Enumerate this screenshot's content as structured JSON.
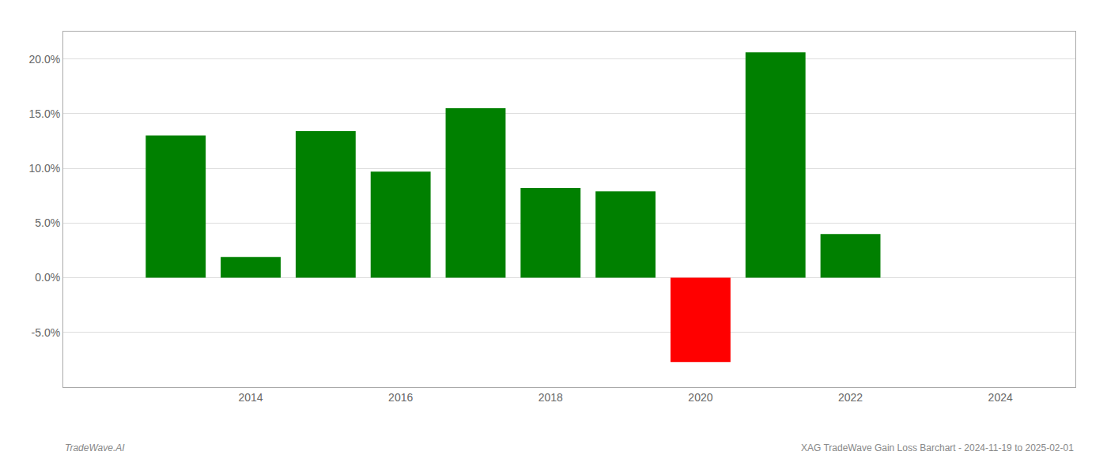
{
  "chart_data": {
    "type": "bar",
    "x": [
      2013,
      2014,
      2015,
      2016,
      2017,
      2018,
      2019,
      2020,
      2021,
      2022,
      2023
    ],
    "values": [
      0.13,
      0.019,
      0.134,
      0.097,
      0.155,
      0.082,
      0.079,
      -0.077,
      0.206,
      0.04,
      0.0
    ],
    "colors": [
      "#008000",
      "#008000",
      "#008000",
      "#008000",
      "#008000",
      "#008000",
      "#008000",
      "#ff0000",
      "#008000",
      "#008000",
      "#008000"
    ],
    "xlim": [
      2011.5,
      2025.0
    ],
    "xticks": [
      2014,
      2016,
      2018,
      2020,
      2022,
      2024
    ],
    "ylim": [
      -0.1,
      0.225
    ],
    "yticks": [
      {
        "value": -0.05,
        "label": "-5.0%"
      },
      {
        "value": 0.0,
        "label": "0.0%"
      },
      {
        "value": 0.05,
        "label": "5.0%"
      },
      {
        "value": 0.1,
        "label": "10.0%"
      },
      {
        "value": 0.15,
        "label": "15.0%"
      },
      {
        "value": 0.2,
        "label": "20.0%"
      }
    ],
    "grid": true,
    "annotations": [
      "TradeWave.AI",
      "XAG TradeWave Gain Loss Barchart - 2024-11-19 to 2025-02-01"
    ]
  }
}
